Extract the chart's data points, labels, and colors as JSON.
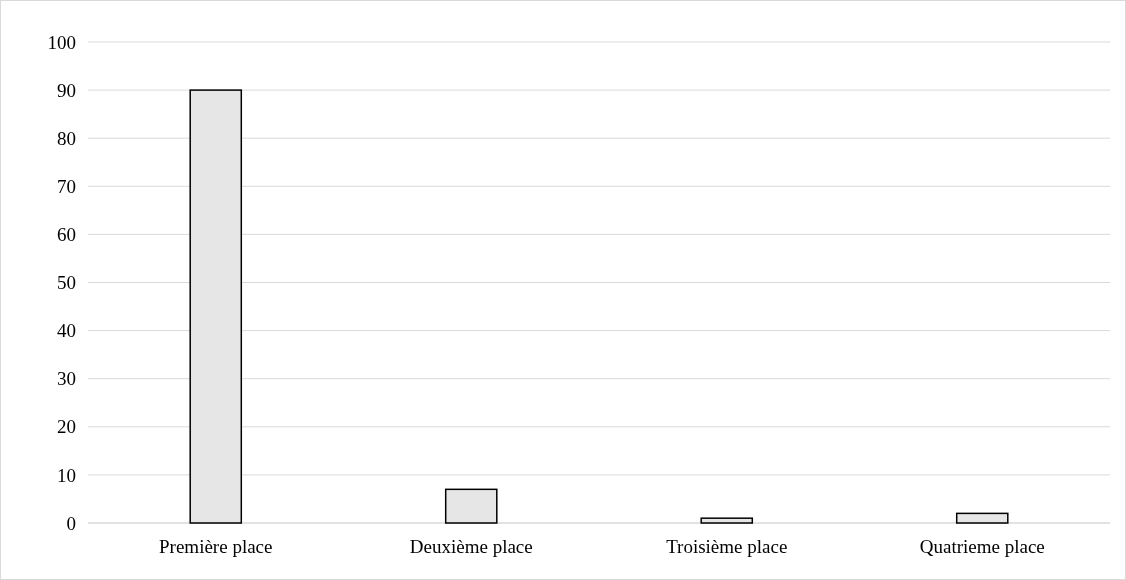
{
  "chart_data": {
    "type": "bar",
    "categories": [
      "Première place",
      "Deuxième place",
      "Troisième place",
      "Quatrieme place"
    ],
    "values": [
      90,
      7,
      1,
      2
    ],
    "color": "#e7e6e6",
    "ylim": [
      0,
      100
    ],
    "yticks": [
      0,
      10,
      20,
      30,
      40,
      50,
      60,
      70,
      80,
      90,
      100
    ],
    "grid": "y"
  }
}
